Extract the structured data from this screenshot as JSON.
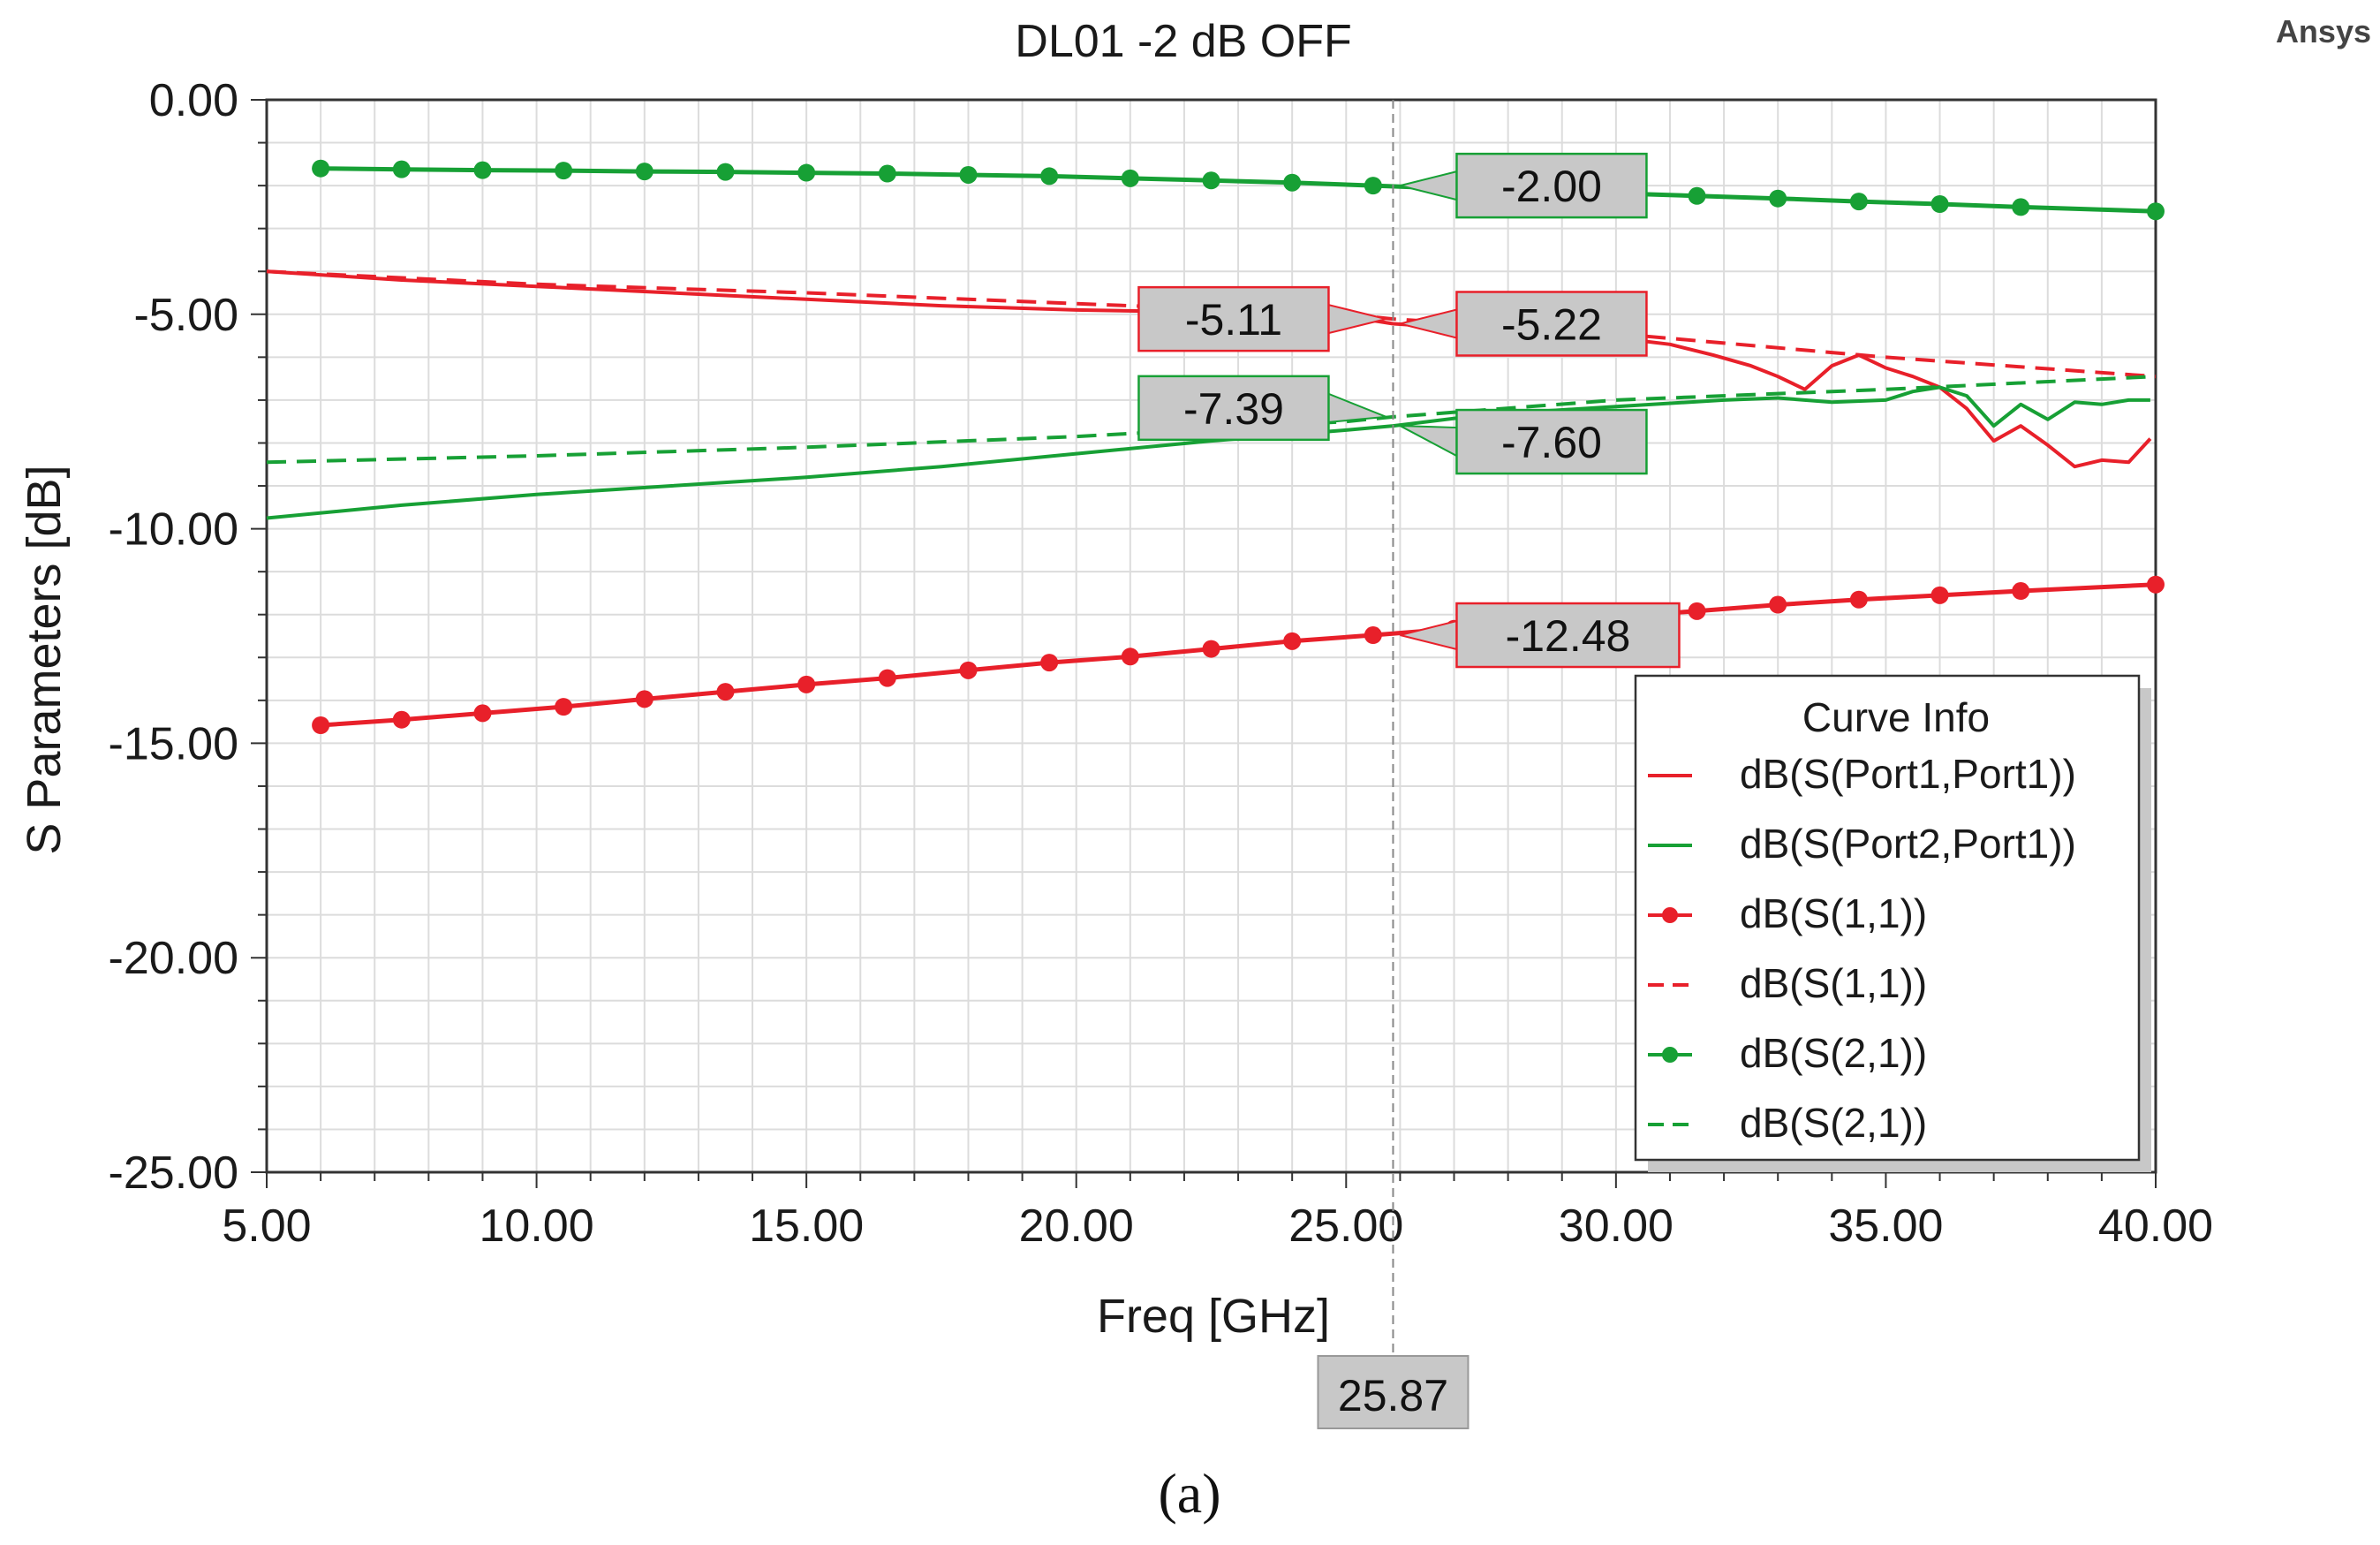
{
  "chart_data": {
    "type": "line",
    "title": "DL01 -2 dB OFF",
    "brand": "Ansys",
    "caption": "(a)",
    "xlabel": "Freq [GHz]",
    "ylabel": "S Parameters [dB]",
    "xlim": [
      5,
      40
    ],
    "ylim": [
      -25,
      0
    ],
    "x_ticks": [
      5,
      10,
      15,
      20,
      25,
      30,
      35,
      40
    ],
    "y_ticks": [
      0,
      -5,
      -10,
      -15,
      -20,
      -25
    ],
    "x_tick_labels": [
      "5.00",
      "10.00",
      "15.00",
      "20.00",
      "25.00",
      "30.00",
      "35.00",
      "40.00"
    ],
    "y_tick_labels": [
      "0.00",
      "-5.00",
      "-10.00",
      "-15.00",
      "-20.00",
      "-25.00"
    ],
    "grid": true,
    "legend_title": "Curve Info",
    "legend_position": "bottom-right",
    "colors": {
      "red": "#e8202a",
      "green": "#17a035",
      "grid": "#dcdcdc",
      "marker_fill": "#c8c8c8"
    },
    "series": [
      {
        "name": "dB(S(Port1,Port1))",
        "color": "#e8202a",
        "style": "solid",
        "markers": false,
        "x": [
          5,
          7.5,
          10,
          12.5,
          15,
          17.5,
          20,
          22.5,
          25,
          25.87,
          27.5,
          29,
          30,
          31,
          31.8,
          32.5,
          33,
          33.5,
          34,
          34.5,
          35,
          35.5,
          36,
          36.5,
          37,
          37.5,
          38,
          38.5,
          39,
          39.5,
          39.9
        ],
        "y": [
          -4.0,
          -4.2,
          -4.35,
          -4.5,
          -4.65,
          -4.8,
          -4.9,
          -4.95,
          -5.05,
          -5.22,
          -5.35,
          -5.45,
          -5.55,
          -5.7,
          -5.95,
          -6.2,
          -6.45,
          -6.75,
          -6.2,
          -5.95,
          -6.25,
          -6.45,
          -6.7,
          -7.2,
          -7.95,
          -7.6,
          -8.05,
          -8.55,
          -8.4,
          -8.45,
          -7.9
        ]
      },
      {
        "name": "dB(S(Port2,Port1))",
        "color": "#17a035",
        "style": "solid",
        "markers": false,
        "x": [
          5,
          7.5,
          10,
          12.5,
          15,
          17.5,
          20,
          22.5,
          25,
          25.87,
          27.5,
          30,
          32,
          33,
          34,
          35,
          35.5,
          36,
          36.5,
          37,
          37.5,
          38,
          38.5,
          39,
          39.5,
          39.9
        ],
        "y": [
          -9.75,
          -9.45,
          -9.2,
          -9.0,
          -8.8,
          -8.55,
          -8.25,
          -7.95,
          -7.7,
          -7.6,
          -7.35,
          -7.15,
          -7.0,
          -6.95,
          -7.05,
          -7.0,
          -6.8,
          -6.7,
          -6.9,
          -7.6,
          -7.1,
          -7.45,
          -7.05,
          -7.1,
          -7.0,
          -7.0
        ]
      },
      {
        "name": "dB(S(1,1))",
        "color": "#e8202a",
        "style": "solid",
        "markers": true,
        "x": [
          6,
          7.5,
          9,
          10.5,
          12,
          13.5,
          15,
          16.5,
          18,
          19.5,
          21,
          22.5,
          24,
          25.5,
          27,
          28.5,
          30,
          31.5,
          33,
          34.5,
          36,
          37.5,
          40
        ],
        "y": [
          -14.58,
          -14.45,
          -14.3,
          -14.15,
          -13.97,
          -13.8,
          -13.63,
          -13.48,
          -13.3,
          -13.12,
          -12.98,
          -12.8,
          -12.62,
          -12.48,
          -12.33,
          -12.2,
          -12.05,
          -11.92,
          -11.77,
          -11.65,
          -11.55,
          -11.45,
          -11.3
        ]
      },
      {
        "name": "dB(S(1,1))",
        "color": "#e8202a",
        "style": "dashed",
        "markers": false,
        "x": [
          5,
          10,
          15,
          20,
          25,
          25.87,
          30,
          35,
          40
        ],
        "y": [
          -4.0,
          -4.3,
          -4.5,
          -4.75,
          -5.0,
          -5.11,
          -5.45,
          -6.0,
          -6.45
        ]
      },
      {
        "name": "dB(S(2,1))",
        "color": "#17a035",
        "style": "solid",
        "markers": true,
        "x": [
          6,
          7.5,
          9,
          10.5,
          12,
          13.5,
          15,
          16.5,
          18,
          19.5,
          21,
          22.5,
          24,
          25.5,
          27,
          28.5,
          30,
          31.5,
          33,
          34.5,
          36,
          37.5,
          40
        ],
        "y": [
          -1.6,
          -1.62,
          -1.64,
          -1.65,
          -1.67,
          -1.68,
          -1.7,
          -1.72,
          -1.75,
          -1.78,
          -1.83,
          -1.88,
          -1.93,
          -2.0,
          -2.07,
          -2.12,
          -2.18,
          -2.24,
          -2.3,
          -2.37,
          -2.43,
          -2.5,
          -2.6
        ]
      },
      {
        "name": "dB(S(2,1))",
        "color": "#17a035",
        "style": "dashed",
        "markers": false,
        "x": [
          5,
          10,
          15,
          20,
          25,
          25.87,
          30,
          35,
          40
        ],
        "y": [
          -8.45,
          -8.3,
          -8.1,
          -7.85,
          -7.5,
          -7.39,
          -7.0,
          -6.75,
          -6.45
        ]
      }
    ],
    "marker": {
      "name": "25.87",
      "x": 25.87,
      "values": [
        {
          "label": "-2.00",
          "y": -2.0,
          "color": "#17a035",
          "side": "right"
        },
        {
          "label": "-5.11",
          "y": -5.11,
          "color": "#e8202a",
          "side": "left"
        },
        {
          "label": "-5.22",
          "y": -5.22,
          "color": "#e8202a",
          "side": "right"
        },
        {
          "label": "-7.39",
          "y": -7.39,
          "color": "#17a035",
          "side": "left"
        },
        {
          "label": "-7.60",
          "y": -7.6,
          "color": "#17a035",
          "side": "right"
        },
        {
          "label": "-12.48",
          "y": -12.48,
          "color": "#e8202a",
          "side": "right"
        }
      ]
    }
  }
}
